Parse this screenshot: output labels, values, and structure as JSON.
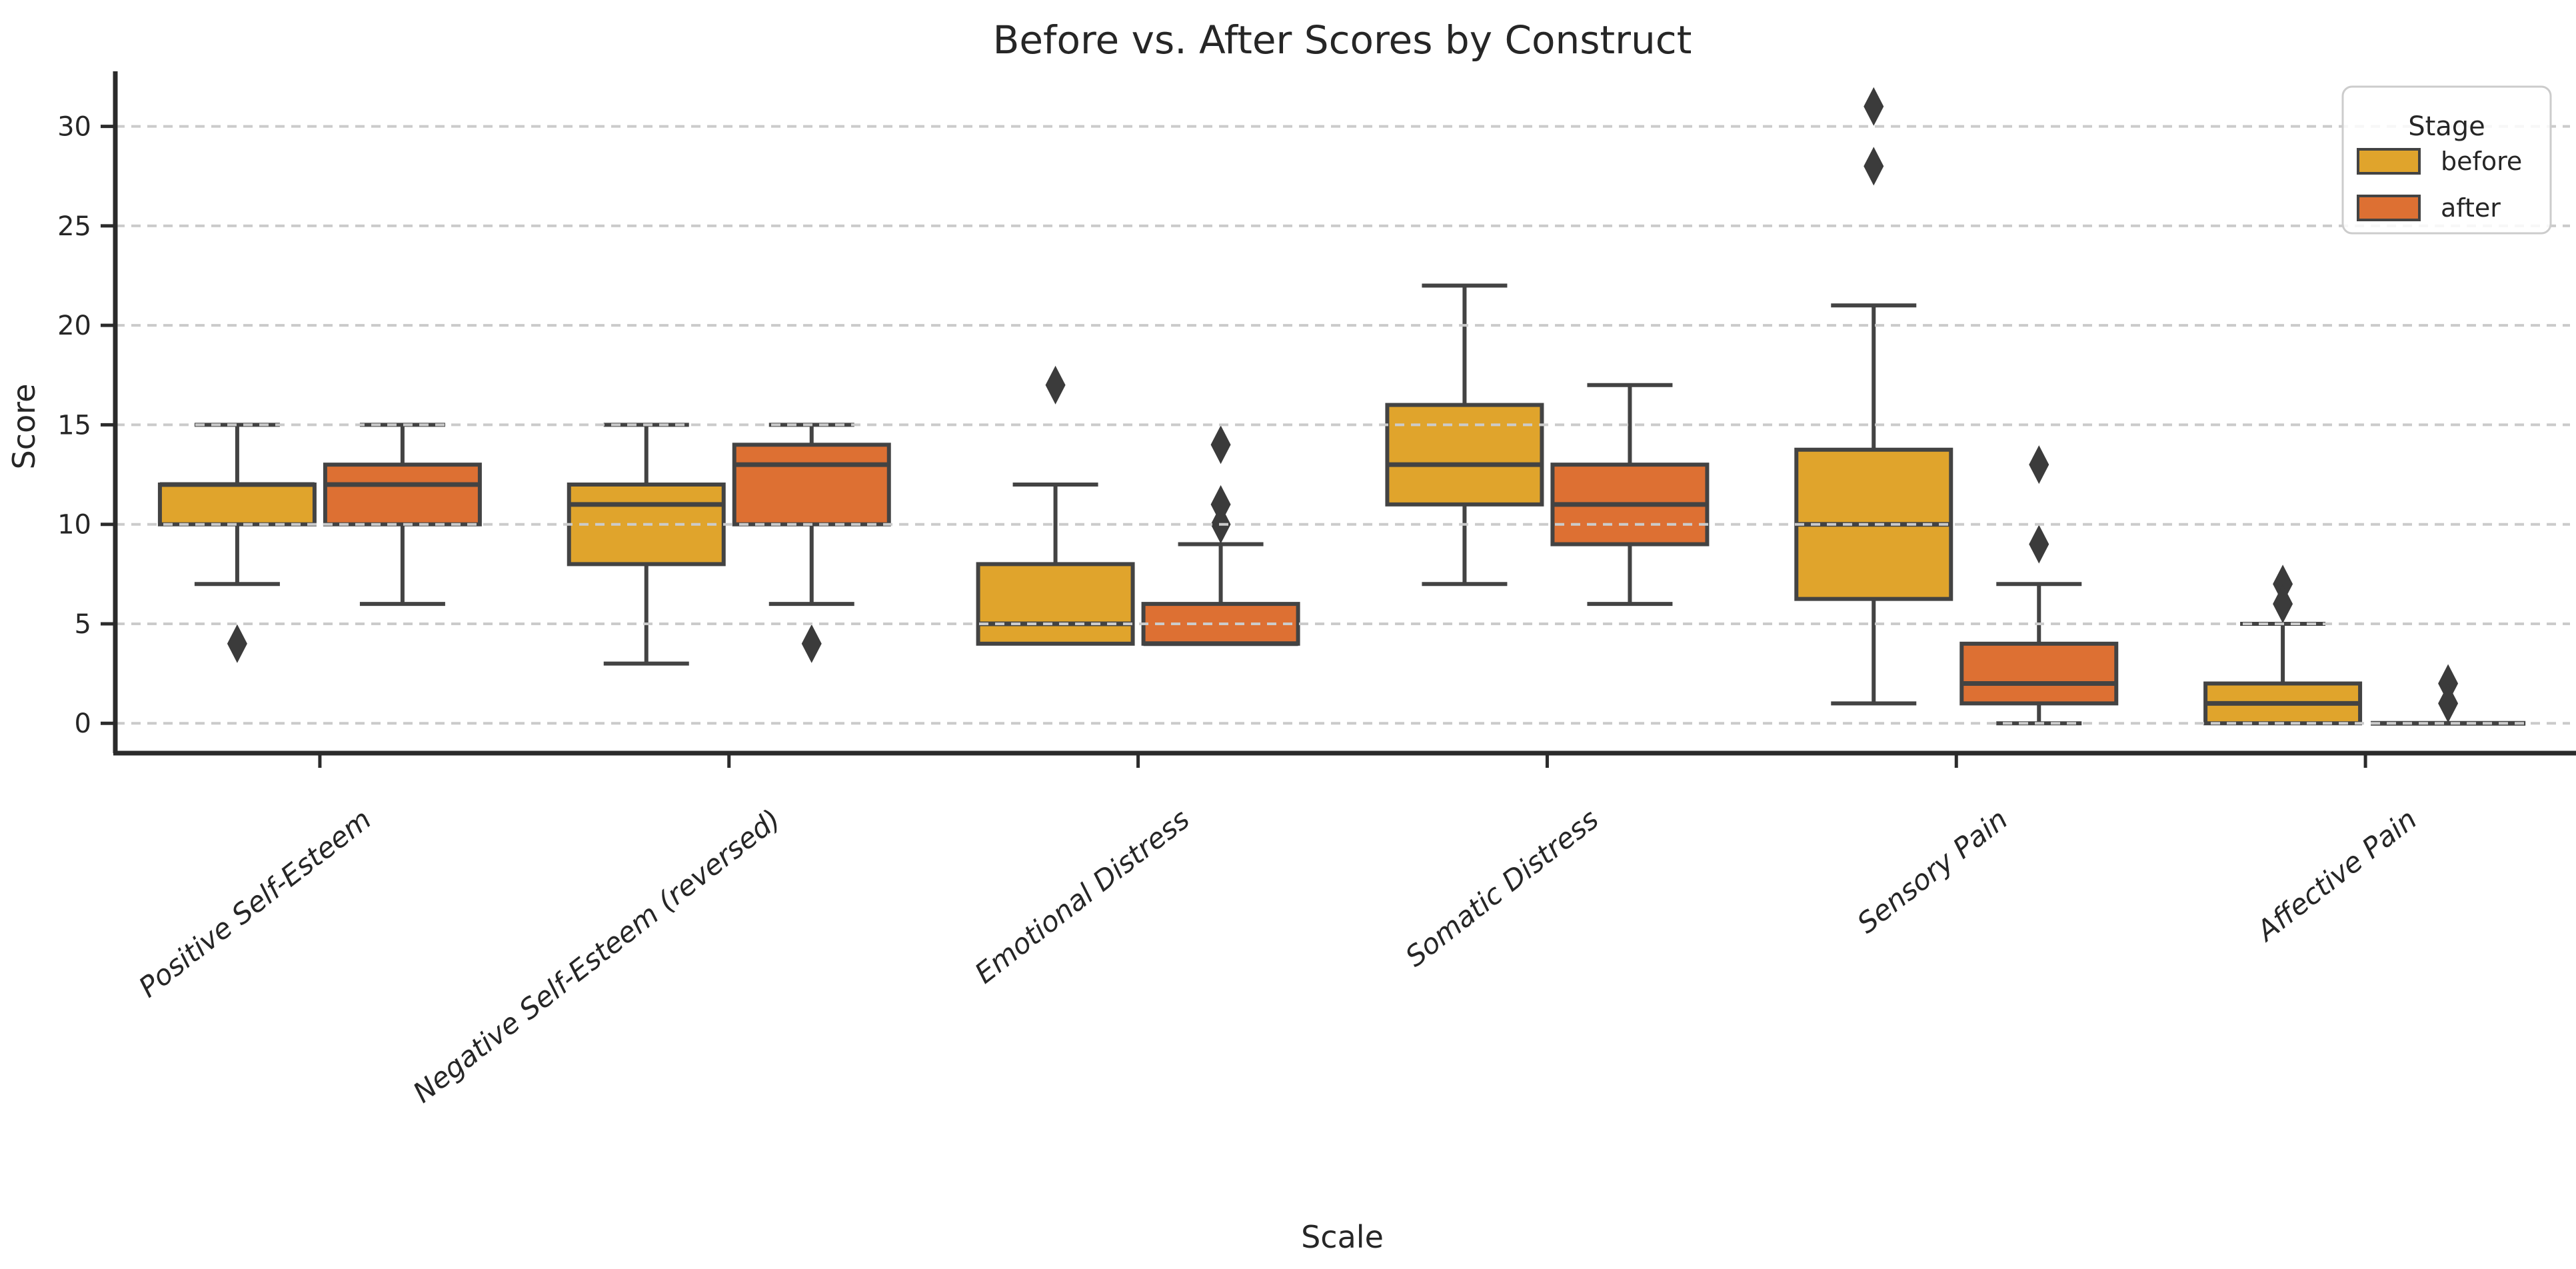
{
  "chart_data": {
    "type": "boxplot",
    "title": "Before vs. After Scores by Construct",
    "xlabel": "Scale",
    "ylabel": "Score",
    "ylim": [
      -1.5,
      32.5
    ],
    "yticks": [
      0,
      5,
      10,
      15,
      20,
      25,
      30
    ],
    "grid": "horizontal-dashed",
    "legend": {
      "title": "Stage",
      "position": "upper-right"
    },
    "categories": [
      "Positive Self-Esteem",
      "Negative Self-Esteem (reversed)",
      "Emotional Distress",
      "Somatic Distress",
      "Sensory Pain",
      "Affective Pain"
    ],
    "series": [
      {
        "name": "before",
        "color": "#E0A42C",
        "boxes": [
          {
            "whislo": 7,
            "q1": 10,
            "med": 12,
            "q3": 12,
            "whishi": 15,
            "outliers": [
              4
            ]
          },
          {
            "whislo": 3,
            "q1": 8,
            "med": 11,
            "q3": 12,
            "whishi": 15,
            "outliers": []
          },
          {
            "whislo": 4,
            "q1": 4,
            "med": 5,
            "q3": 8,
            "whishi": 12,
            "outliers": [
              17
            ]
          },
          {
            "whislo": 7,
            "q1": 11,
            "med": 13,
            "q3": 16,
            "whishi": 22,
            "outliers": []
          },
          {
            "whislo": 1,
            "q1": 6.25,
            "med": 10,
            "q3": 13.75,
            "whishi": 21,
            "outliers": [
              31,
              28
            ]
          },
          {
            "whislo": 0,
            "q1": 0,
            "med": 1,
            "q3": 2,
            "whishi": 5,
            "outliers": [
              7,
              6
            ]
          }
        ]
      },
      {
        "name": "after",
        "color": "#DD7033",
        "boxes": [
          {
            "whislo": 6,
            "q1": 10,
            "med": 12,
            "q3": 13,
            "whishi": 15,
            "outliers": []
          },
          {
            "whislo": 6,
            "q1": 10,
            "med": 13,
            "q3": 14,
            "whishi": 15,
            "outliers": [
              4
            ]
          },
          {
            "whislo": 4,
            "q1": 4,
            "med": 4,
            "q3": 6,
            "whishi": 9,
            "outliers": [
              14,
              11,
              10
            ]
          },
          {
            "whislo": 6,
            "q1": 9,
            "med": 11,
            "q3": 13,
            "whishi": 17,
            "outliers": []
          },
          {
            "whislo": 0,
            "q1": 1,
            "med": 2,
            "q3": 4,
            "whishi": 7,
            "outliers": [
              13,
              9
            ]
          },
          {
            "whislo": 0,
            "q1": 0,
            "med": 0,
            "q3": 0,
            "whishi": 0,
            "outliers": [
              2,
              1
            ]
          }
        ]
      }
    ],
    "style": {
      "edge_color": "#434343",
      "median_color": "#434343",
      "whisker_color": "#434343",
      "outlier_color": "#3b3b3b",
      "grid_color": "#cbcbcb",
      "spine_color": "#2b2b2b",
      "text_color": "#262626",
      "legend_border_color": "#cccccc",
      "background_color": "#ffffff"
    }
  }
}
